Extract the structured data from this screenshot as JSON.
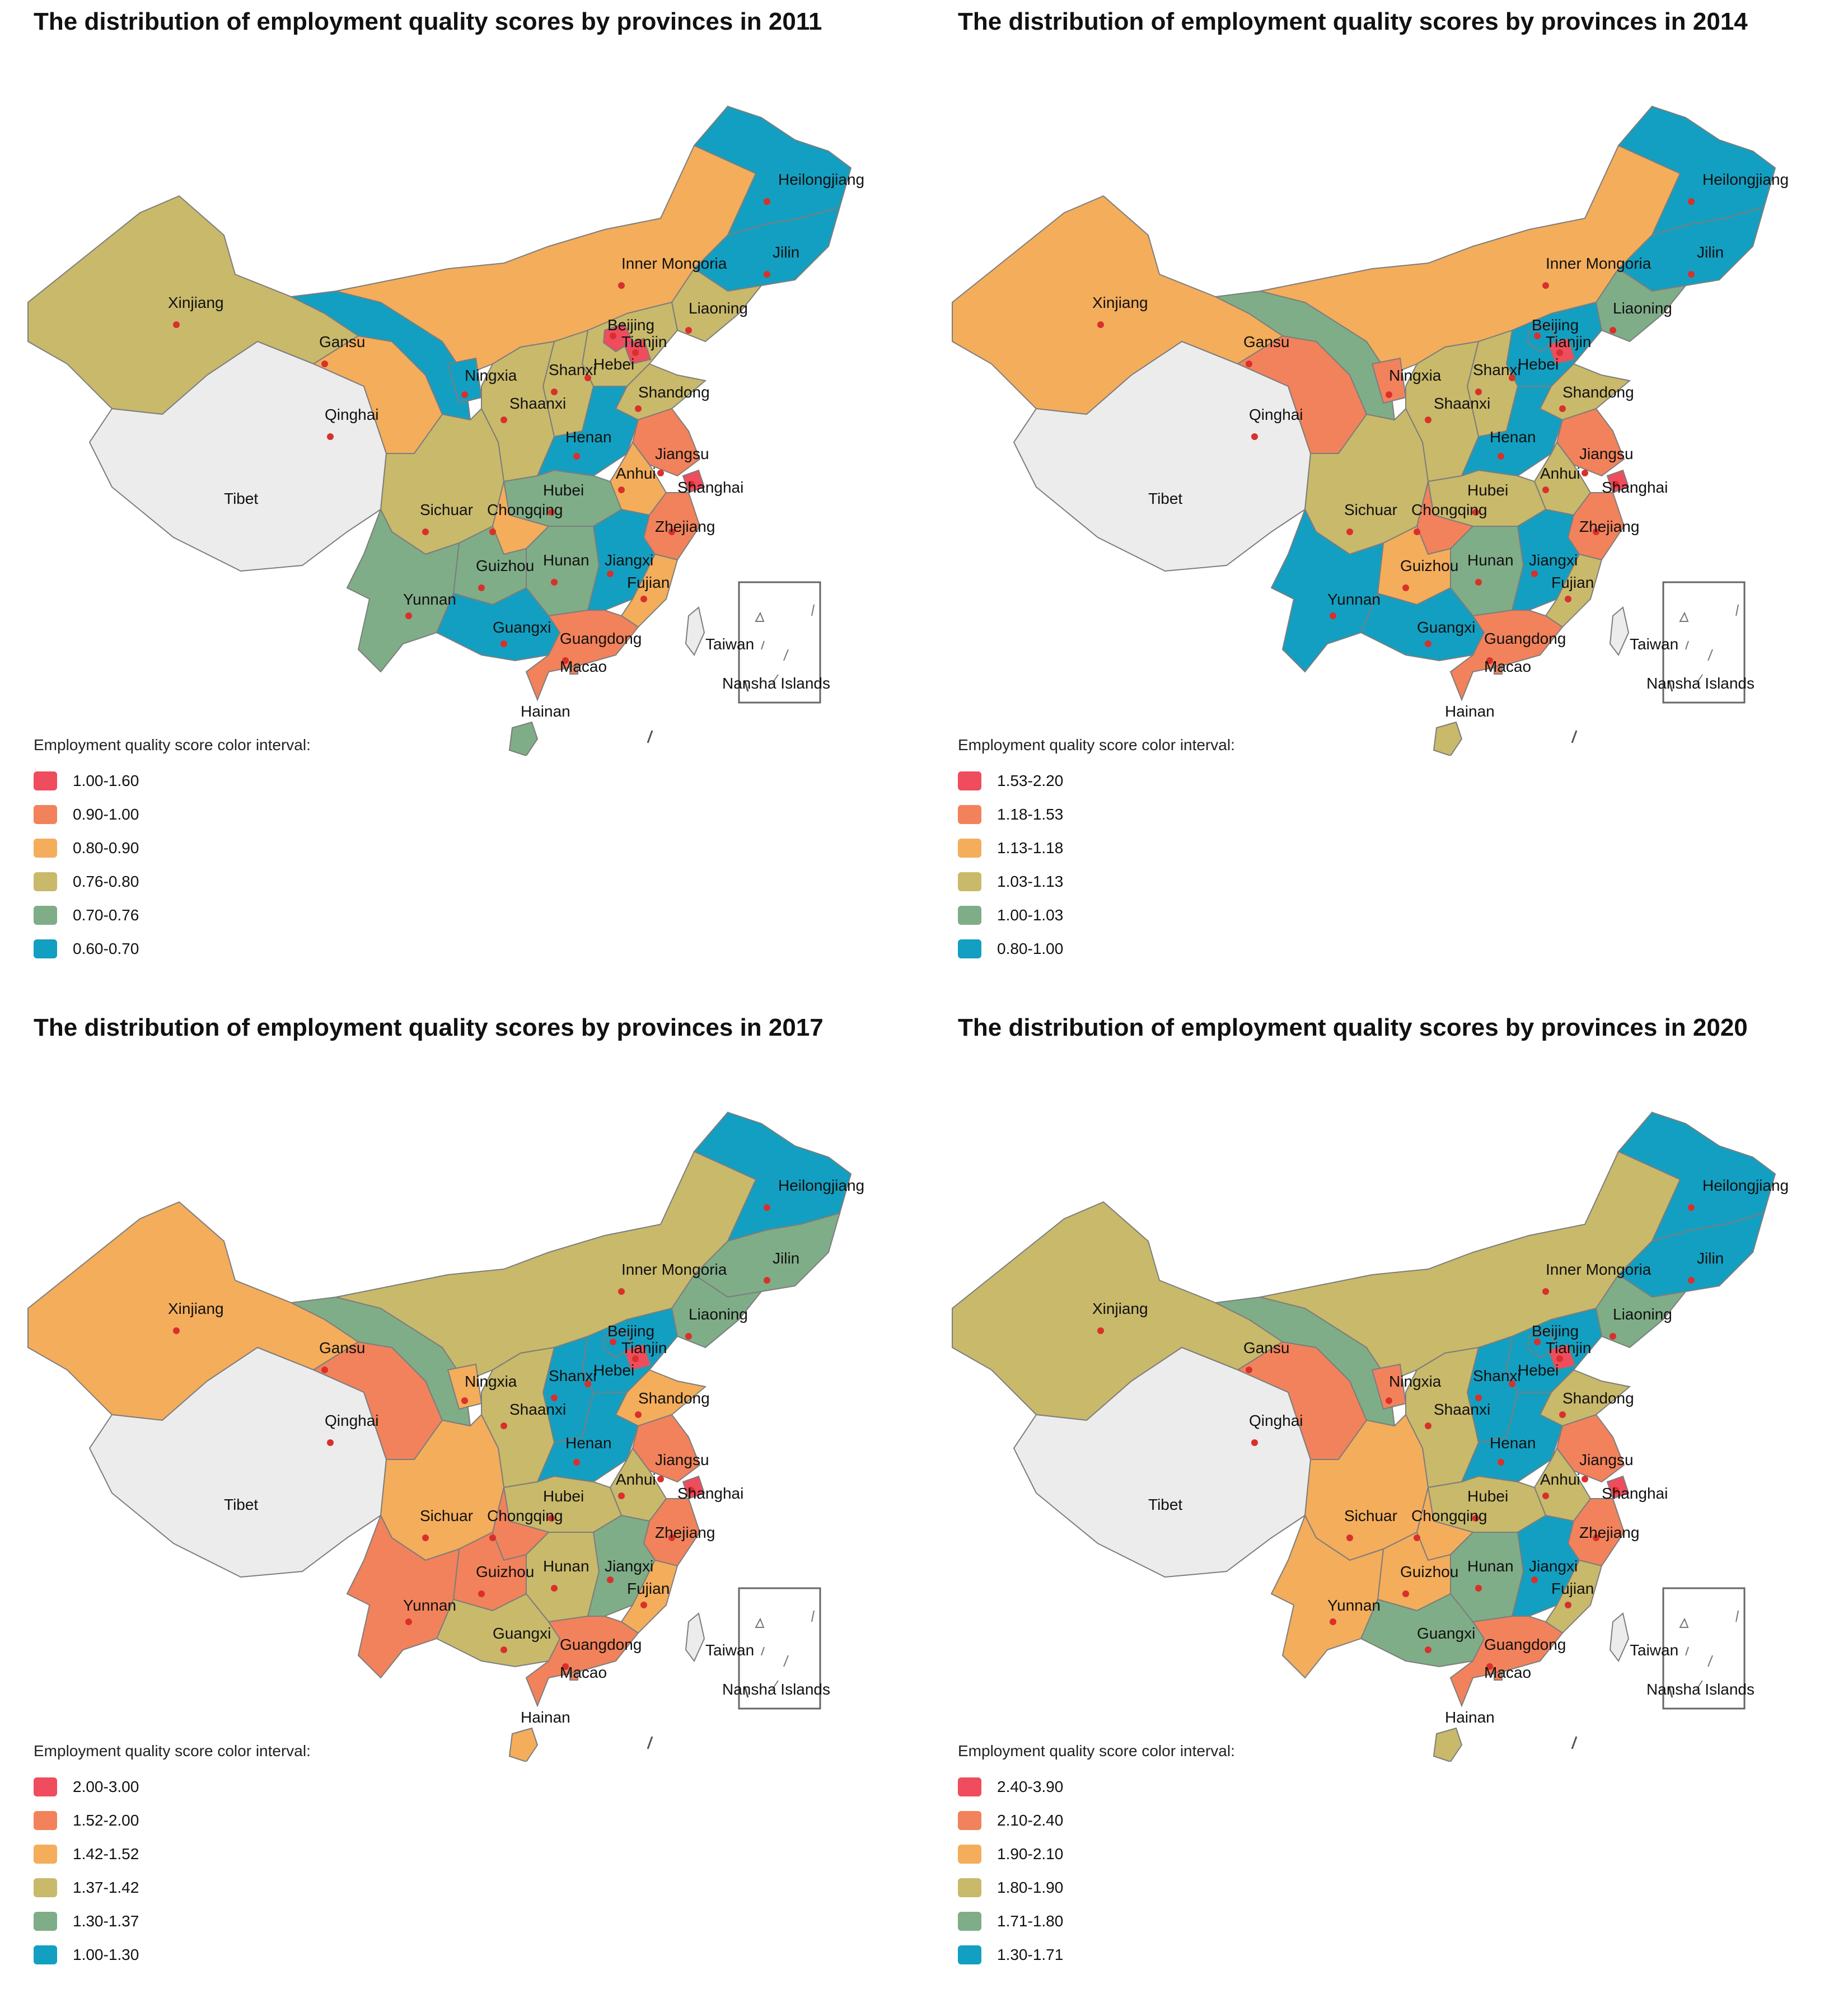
{
  "legend_title": "Employment quality score color interval:",
  "colors": {
    "c1": "#ef4c5d",
    "c2": "#f2825b",
    "c3": "#f4ad5b",
    "c4": "#c9b96a",
    "c5": "#7fad87",
    "c6": "#139fc1",
    "none": "#ececec",
    "border": "#7d7d7d",
    "dot": "#d9302c"
  },
  "provinces": [
    {
      "id": "xinjiang",
      "name": "Xinjiang"
    },
    {
      "id": "tibet",
      "name": "Tibet"
    },
    {
      "id": "qinghai",
      "name": "Qinghai"
    },
    {
      "id": "gansu",
      "name": "Gansu"
    },
    {
      "id": "innermongolia",
      "name": "Inner Mongoria"
    },
    {
      "id": "heilongjiang",
      "name": "Heilongjiang"
    },
    {
      "id": "jilin",
      "name": "Jilin"
    },
    {
      "id": "liaoning",
      "name": "Liaoning"
    },
    {
      "id": "beijing",
      "name": "Beijing"
    },
    {
      "id": "tianjin",
      "name": "Tianjin"
    },
    {
      "id": "hebei",
      "name": "Hebei"
    },
    {
      "id": "shanxi",
      "name": "Shanxi"
    },
    {
      "id": "shandong",
      "name": "Shandong"
    },
    {
      "id": "ningxia",
      "name": "Ningxia"
    },
    {
      "id": "shaanxi",
      "name": "Shaanxi"
    },
    {
      "id": "henan",
      "name": "Henan"
    },
    {
      "id": "jiangsu",
      "name": "Jiangsu"
    },
    {
      "id": "anhui",
      "name": "Anhui"
    },
    {
      "id": "shanghai",
      "name": "Shanghai"
    },
    {
      "id": "hubei",
      "name": "Hubei"
    },
    {
      "id": "sichuan",
      "name": "Sichuar"
    },
    {
      "id": "chongqing",
      "name": "Chongqing"
    },
    {
      "id": "zhejiang",
      "name": "Zhejiang"
    },
    {
      "id": "guizhou",
      "name": "Guizhou"
    },
    {
      "id": "hunan",
      "name": "Hunan"
    },
    {
      "id": "jiangxi",
      "name": "Jiangxi"
    },
    {
      "id": "fujian",
      "name": "Fujian"
    },
    {
      "id": "yunnan",
      "name": "Yunnan"
    },
    {
      "id": "guangxi",
      "name": "Guangxi"
    },
    {
      "id": "guangdong",
      "name": "Guangdong"
    },
    {
      "id": "macao",
      "name": "Macao"
    },
    {
      "id": "taiwan",
      "name": "Taiwan"
    },
    {
      "id": "hainan",
      "name": "Hainan"
    }
  ],
  "inset_label": "Nansha Islands",
  "maps": [
    {
      "title": "The distribution of employment quality scores by provinces in 2011",
      "legend": [
        "1.00-1.60",
        "0.90-1.00",
        "0.80-0.90",
        "0.76-0.80",
        "0.70-0.76",
        "0.60-0.70"
      ],
      "classes": {
        "xinjiang": 4,
        "tibet": 0,
        "qinghai": 3,
        "gansu": 6,
        "innermongolia": 3,
        "heilongjiang": 6,
        "jilin": 6,
        "liaoning": 4,
        "beijing": 1,
        "tianjin": 1,
        "hebei": 4,
        "shanxi": 4,
        "shandong": 4,
        "ningxia": 6,
        "shaanxi": 4,
        "henan": 6,
        "jiangsu": 2,
        "anhui": 3,
        "shanghai": 1,
        "hubei": 5,
        "sichuan": 4,
        "chongqing": 3,
        "zhejiang": 2,
        "guizhou": 5,
        "hunan": 5,
        "jiangxi": 6,
        "fujian": 3,
        "yunnan": 5,
        "guangxi": 6,
        "guangdong": 2,
        "macao": 2,
        "taiwan": 0,
        "hainan": 5
      }
    },
    {
      "title": "The distribution of employment quality scores by provinces in 2014",
      "legend": [
        "1.53-2.20",
        "1.18-1.53",
        "1.13-1.18",
        "1.03-1.13",
        "1.00-1.03",
        "0.80-1.00"
      ],
      "classes": {
        "xinjiang": 3,
        "tibet": 0,
        "qinghai": 2,
        "gansu": 5,
        "innermongolia": 3,
        "heilongjiang": 6,
        "jilin": 6,
        "liaoning": 5,
        "beijing": 6,
        "tianjin": 1,
        "hebei": 6,
        "shanxi": 4,
        "shandong": 4,
        "ningxia": 2,
        "shaanxi": 4,
        "henan": 6,
        "jiangsu": 2,
        "anhui": 4,
        "shanghai": 1,
        "hubei": 4,
        "sichuan": 4,
        "chongqing": 2,
        "zhejiang": 2,
        "guizhou": 3,
        "hunan": 5,
        "jiangxi": 6,
        "fujian": 4,
        "yunnan": 6,
        "guangxi": 6,
        "guangdong": 2,
        "macao": 2,
        "taiwan": 0,
        "hainan": 4
      }
    },
    {
      "title": "The distribution of employment quality scores by provinces in 2017",
      "legend": [
        "2.00-3.00",
        "1.52-2.00",
        "1.42-1.52",
        "1.37-1.42",
        "1.30-1.37",
        "1.00-1.30"
      ],
      "classes": {
        "xinjiang": 3,
        "tibet": 0,
        "qinghai": 2,
        "gansu": 5,
        "innermongolia": 4,
        "heilongjiang": 6,
        "jilin": 5,
        "liaoning": 5,
        "beijing": 6,
        "tianjin": 1,
        "hebei": 6,
        "shanxi": 6,
        "shandong": 3,
        "ningxia": 3,
        "shaanxi": 4,
        "henan": 6,
        "jiangsu": 2,
        "anhui": 4,
        "shanghai": 1,
        "hubei": 4,
        "sichuan": 3,
        "chongqing": 2,
        "zhejiang": 2,
        "guizhou": 2,
        "hunan": 4,
        "jiangxi": 5,
        "fujian": 3,
        "yunnan": 2,
        "guangxi": 4,
        "guangdong": 2,
        "macao": 2,
        "taiwan": 0,
        "hainan": 3
      }
    },
    {
      "title": "The distribution of employment quality scores by provinces in 2020",
      "legend": [
        "2.40-3.90",
        "2.10-2.40",
        "1.90-2.10",
        "1.80-1.90",
        "1.71-1.80",
        "1.30-1.71"
      ],
      "classes": {
        "xinjiang": 4,
        "tibet": 0,
        "qinghai": 2,
        "gansu": 5,
        "innermongolia": 4,
        "heilongjiang": 6,
        "jilin": 6,
        "liaoning": 5,
        "beijing": 6,
        "tianjin": 1,
        "hebei": 6,
        "shanxi": 6,
        "shandong": 4,
        "ningxia": 2,
        "shaanxi": 4,
        "henan": 6,
        "jiangsu": 2,
        "anhui": 4,
        "shanghai": 1,
        "hubei": 4,
        "sichuan": 3,
        "chongqing": 3,
        "zhejiang": 2,
        "guizhou": 3,
        "hunan": 5,
        "jiangxi": 6,
        "fujian": 4,
        "yunnan": 3,
        "guangxi": 5,
        "guangdong": 2,
        "macao": 2,
        "taiwan": 0,
        "hainan": 4
      }
    }
  ]
}
